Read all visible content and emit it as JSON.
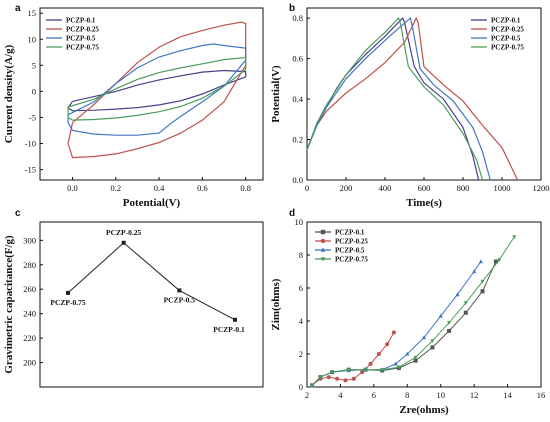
{
  "chart_data": [
    {
      "panel": "a",
      "type": "line",
      "xlabel": "Potential(V)",
      "ylabel": "Current density(A/g)",
      "xlim": [
        -0.15,
        0.88
      ],
      "ylim": [
        -17,
        16
      ],
      "xticks": [
        "0.0",
        "0.2",
        "0.4",
        "0.6",
        "0.8"
      ],
      "yticks": [
        "-15",
        "-10",
        "-5",
        "0",
        "5",
        "10",
        "15"
      ],
      "legend_position": "top-left",
      "series": [
        {
          "name": "PCZP-0.1",
          "color": "#4b3f8f",
          "upper": [
            [
              0.0,
              -1.9
            ],
            [
              0.1,
              -1.0
            ],
            [
              0.2,
              0.0
            ],
            [
              0.3,
              1.2
            ],
            [
              0.4,
              2.2
            ],
            [
              0.5,
              3.0
            ],
            [
              0.6,
              3.7
            ],
            [
              0.7,
              4.0
            ],
            [
              0.8,
              3.8
            ]
          ],
          "lower": [
            [
              0.8,
              2.8
            ],
            [
              0.7,
              1.2
            ],
            [
              0.6,
              -0.5
            ],
            [
              0.5,
              -1.8
            ],
            [
              0.4,
              -2.6
            ],
            [
              0.3,
              -3.1
            ],
            [
              0.2,
              -3.4
            ],
            [
              0.1,
              -3.6
            ],
            [
              0.0,
              -3.7
            ],
            [
              -0.02,
              -3.2
            ]
          ]
        },
        {
          "name": "PCZP-0.25",
          "color": "#c0504d",
          "upper": [
            [
              0.0,
              -6.0
            ],
            [
              0.1,
              -2.5
            ],
            [
              0.2,
              1.5
            ],
            [
              0.3,
              5.5
            ],
            [
              0.4,
              8.5
            ],
            [
              0.5,
              10.5
            ],
            [
              0.6,
              11.7
            ],
            [
              0.7,
              12.7
            ],
            [
              0.78,
              13.3
            ],
            [
              0.8,
              13.0
            ]
          ],
          "lower": [
            [
              0.8,
              5.0
            ],
            [
              0.7,
              -2.0
            ],
            [
              0.6,
              -5.5
            ],
            [
              0.5,
              -8.0
            ],
            [
              0.4,
              -9.8
            ],
            [
              0.3,
              -11.0
            ],
            [
              0.2,
              -12.0
            ],
            [
              0.1,
              -12.5
            ],
            [
              0.0,
              -12.7
            ],
            [
              -0.02,
              -10.0
            ]
          ]
        },
        {
          "name": "PCZP-0.5",
          "color": "#3f76c4",
          "upper": [
            [
              -0.02,
              -4.5
            ],
            [
              0.1,
              -2.0
            ],
            [
              0.2,
              1.5
            ],
            [
              0.3,
              4.5
            ],
            [
              0.4,
              6.6
            ],
            [
              0.5,
              7.8
            ],
            [
              0.6,
              8.8
            ],
            [
              0.65,
              9.1
            ],
            [
              0.7,
              8.8
            ],
            [
              0.8,
              8.3
            ]
          ],
          "lower": [
            [
              0.8,
              6.0
            ],
            [
              0.7,
              1.0
            ],
            [
              0.6,
              -2.0
            ],
            [
              0.5,
              -4.8
            ],
            [
              0.45,
              -6.3
            ],
            [
              0.4,
              -8.0
            ],
            [
              0.3,
              -8.4
            ],
            [
              0.2,
              -8.4
            ],
            [
              0.1,
              -8.2
            ],
            [
              0.0,
              -7.5
            ],
            [
              -0.02,
              -6.0
            ]
          ]
        },
        {
          "name": "PCZP-0.75",
          "color": "#4a9e5c",
          "upper": [
            [
              -0.02,
              -3.0
            ],
            [
              0.1,
              -1.5
            ],
            [
              0.2,
              0.5
            ],
            [
              0.3,
              2.3
            ],
            [
              0.4,
              3.6
            ],
            [
              0.5,
              4.5
            ],
            [
              0.6,
              5.3
            ],
            [
              0.7,
              6.1
            ],
            [
              0.8,
              6.5
            ]
          ],
          "lower": [
            [
              0.8,
              4.2
            ],
            [
              0.7,
              1.0
            ],
            [
              0.6,
              -1.3
            ],
            [
              0.5,
              -2.9
            ],
            [
              0.4,
              -3.9
            ],
            [
              0.3,
              -4.6
            ],
            [
              0.2,
              -5.1
            ],
            [
              0.1,
              -5.4
            ],
            [
              0.0,
              -5.5
            ],
            [
              -0.02,
              -5.0
            ]
          ]
        }
      ]
    },
    {
      "panel": "b",
      "type": "line",
      "xlabel": "Time(s)",
      "ylabel": "Potential(V)",
      "xlim": [
        0,
        1200
      ],
      "ylim": [
        0,
        0.85
      ],
      "xticks": [
        "0",
        "200",
        "400",
        "600",
        "800",
        "1000",
        "1200"
      ],
      "yticks": [
        "0.0",
        "0.2",
        "0.4",
        "0.6",
        "0.8"
      ],
      "legend_position": "top-right",
      "series": [
        {
          "name": "PCZP-0.1",
          "color": "#4b3f8f",
          "points": [
            [
              0,
              0.15
            ],
            [
              50,
              0.27
            ],
            [
              100,
              0.36
            ],
            [
              150,
              0.45
            ],
            [
              200,
              0.52
            ],
            [
              300,
              0.62
            ],
            [
              400,
              0.71
            ],
            [
              490,
              0.8
            ],
            [
              500,
              0.78
            ],
            [
              550,
              0.56
            ],
            [
              600,
              0.48
            ],
            [
              700,
              0.4
            ],
            [
              800,
              0.26
            ],
            [
              850,
              0.12
            ],
            [
              880,
              0.0
            ]
          ]
        },
        {
          "name": "PCZP-0.25",
          "color": "#c0504d",
          "points": [
            [
              0,
              0.15
            ],
            [
              50,
              0.27
            ],
            [
              100,
              0.34
            ],
            [
              200,
              0.43
            ],
            [
              300,
              0.5
            ],
            [
              400,
              0.58
            ],
            [
              500,
              0.68
            ],
            [
              560,
              0.8
            ],
            [
              570,
              0.78
            ],
            [
              600,
              0.56
            ],
            [
              700,
              0.47
            ],
            [
              800,
              0.39
            ],
            [
              900,
              0.27
            ],
            [
              1000,
              0.16
            ],
            [
              1080,
              0.0
            ]
          ]
        },
        {
          "name": "PCZP-0.5",
          "color": "#3f76c4",
          "points": [
            [
              0,
              0.15
            ],
            [
              50,
              0.27
            ],
            [
              100,
              0.36
            ],
            [
              200,
              0.5
            ],
            [
              300,
              0.6
            ],
            [
              400,
              0.69
            ],
            [
              470,
              0.75
            ],
            [
              530,
              0.8
            ],
            [
              540,
              0.76
            ],
            [
              580,
              0.55
            ],
            [
              650,
              0.47
            ],
            [
              750,
              0.39
            ],
            [
              850,
              0.26
            ],
            [
              900,
              0.14
            ],
            [
              940,
              0.0
            ]
          ]
        },
        {
          "name": "PCZP-0.75",
          "color": "#4a9e5c",
          "points": [
            [
              0,
              0.15
            ],
            [
              50,
              0.28
            ],
            [
              100,
              0.37
            ],
            [
              200,
              0.52
            ],
            [
              300,
              0.64
            ],
            [
              400,
              0.73
            ],
            [
              470,
              0.8
            ],
            [
              480,
              0.77
            ],
            [
              520,
              0.56
            ],
            [
              600,
              0.46
            ],
            [
              700,
              0.37
            ],
            [
              800,
              0.23
            ],
            [
              870,
              0.1
            ],
            [
              900,
              0.0
            ]
          ]
        }
      ]
    },
    {
      "panel": "c",
      "type": "line",
      "xlabel": "",
      "ylabel": "Gravimetric capacitance(F/g)",
      "ylim": [
        180,
        315
      ],
      "yticks": [
        "200",
        "220",
        "240",
        "260",
        "280",
        "300"
      ],
      "categories": [
        "PCZP-0.75",
        "PCZP-0.25",
        "PCZP-0.5",
        "PCZP-0.1"
      ],
      "values": [
        257,
        298,
        259,
        235
      ],
      "color": "#222222"
    },
    {
      "panel": "d",
      "type": "scatter",
      "xlabel": "Zre(ohms)",
      "ylabel": "Zim(ohms)",
      "xlim": [
        2,
        16
      ],
      "ylim": [
        0,
        10
      ],
      "xticks": [
        "2",
        "4",
        "6",
        "8",
        "10",
        "12",
        "14",
        "16"
      ],
      "yticks": [
        "0",
        "2",
        "4",
        "6",
        "8",
        "10"
      ],
      "legend_position": "top-left",
      "series": [
        {
          "name": "PCZP-0.1",
          "color": "#555555",
          "marker": "square",
          "points": [
            [
              2.3,
              0.1
            ],
            [
              2.8,
              0.6
            ],
            [
              3.5,
              0.9
            ],
            [
              4.5,
              1.05
            ],
            [
              5.5,
              1.05
            ],
            [
              6.5,
              1.0
            ],
            [
              7.5,
              1.15
            ],
            [
              8.5,
              1.6
            ],
            [
              9.5,
              2.4
            ],
            [
              10.5,
              3.4
            ],
            [
              11.5,
              4.5
            ],
            [
              12.5,
              5.8
            ],
            [
              13.3,
              7.6
            ]
          ]
        },
        {
          "name": "PCZP-0.25",
          "color": "#c0504d",
          "marker": "circle",
          "points": [
            [
              2.3,
              0.1
            ],
            [
              2.8,
              0.5
            ],
            [
              3.3,
              0.6
            ],
            [
              3.8,
              0.5
            ],
            [
              4.3,
              0.4
            ],
            [
              4.8,
              0.5
            ],
            [
              5.3,
              0.9
            ],
            [
              5.8,
              1.4
            ],
            [
              6.3,
              2.0
            ],
            [
              6.8,
              2.6
            ],
            [
              7.2,
              3.3
            ]
          ]
        },
        {
          "name": "PCZP-0.5",
          "color": "#3f76c4",
          "marker": "triangle-up",
          "points": [
            [
              2.3,
              0.1
            ],
            [
              2.8,
              0.6
            ],
            [
              3.5,
              0.9
            ],
            [
              4.5,
              1.0
            ],
            [
              5.5,
              1.05
            ],
            [
              6.5,
              1.05
            ],
            [
              7.3,
              1.4
            ],
            [
              8.0,
              2.0
            ],
            [
              9.0,
              3.0
            ],
            [
              10.0,
              4.3
            ],
            [
              11.0,
              5.6
            ],
            [
              12.0,
              7.0
            ],
            [
              12.4,
              7.6
            ]
          ]
        },
        {
          "name": "PCZP-0.75",
          "color": "#4a9e5c",
          "marker": "triangle-down",
          "points": [
            [
              2.3,
              0.1
            ],
            [
              2.8,
              0.6
            ],
            [
              3.5,
              0.9
            ],
            [
              4.5,
              1.05
            ],
            [
              5.5,
              1.05
            ],
            [
              6.5,
              1.05
            ],
            [
              7.5,
              1.2
            ],
            [
              8.5,
              1.8
            ],
            [
              9.5,
              2.8
            ],
            [
              10.5,
              3.9
            ],
            [
              11.5,
              5.1
            ],
            [
              12.5,
              6.4
            ],
            [
              13.5,
              7.7
            ],
            [
              14.4,
              9.1
            ]
          ]
        }
      ]
    }
  ]
}
